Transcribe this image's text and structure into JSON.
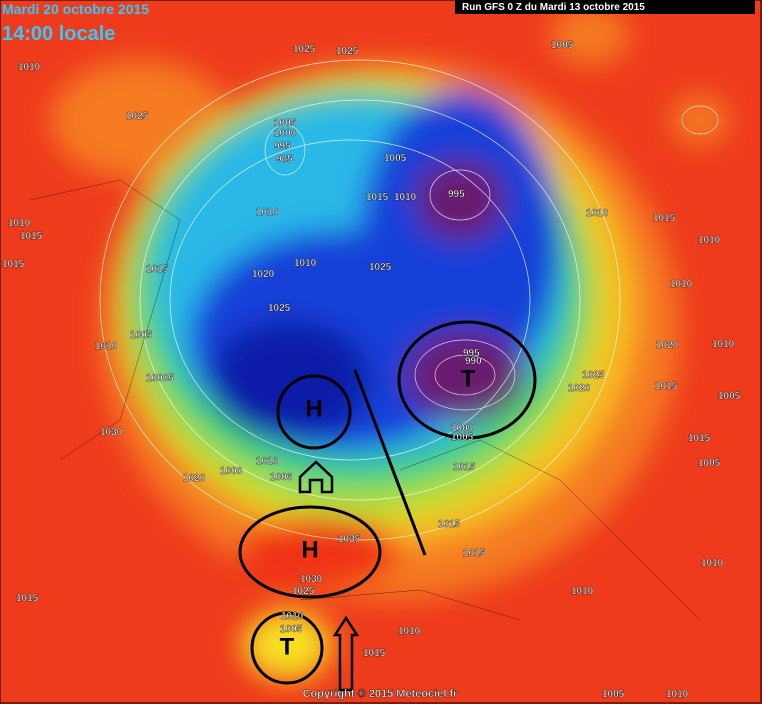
{
  "header": {
    "date": "Mardi 20 octobre 2015",
    "time": "14:00 locale",
    "run": "Run GFS 0 Z du Mardi 13 octobre 2015"
  },
  "isobar_labels": [
    "1025",
    "1025",
    "1010",
    "1005",
    "1025",
    "1005",
    "1000",
    "995",
    "985",
    "1005",
    "1010",
    "1015",
    "1010",
    "995",
    "1010",
    "1015",
    "1010",
    "1015",
    "1010",
    "1015",
    "1015",
    "1020",
    "1010",
    "1025",
    "1010",
    "1025",
    "1005",
    "1010",
    "995",
    "990",
    "1020",
    "1010",
    "1025",
    "1020",
    "1015",
    "10005",
    "1030",
    "1005",
    "1000",
    "1005",
    "1015",
    "1020",
    "1000",
    "1010",
    "1006",
    "1015",
    "1005",
    "1015",
    "1015",
    "1035",
    "1030",
    "1025",
    "1015",
    "1010",
    "1010",
    "1010",
    "1015",
    "1005",
    "1010",
    "1005",
    "1010"
  ],
  "markers": [
    "H",
    "H",
    "T",
    "T"
  ],
  "copyright": "Copyright © 2015 Meteociel.fr"
}
